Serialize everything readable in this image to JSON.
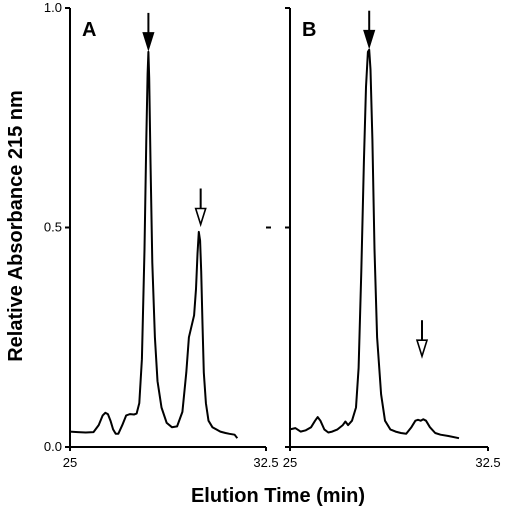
{
  "chart_data": [
    {
      "type": "line",
      "panel_label": "A",
      "x": [
        25.0,
        25.3,
        25.6,
        25.9,
        26.1,
        26.25,
        26.35,
        26.45,
        26.55,
        26.65,
        26.75,
        26.85,
        27.0,
        27.15,
        27.3,
        27.45,
        27.55,
        27.65,
        27.75,
        27.85,
        27.92,
        27.97,
        28.0,
        28.03,
        28.08,
        28.15,
        28.25,
        28.35,
        28.5,
        28.7,
        28.9,
        29.1,
        29.3,
        29.45,
        29.55,
        29.65,
        29.75,
        29.82,
        29.88,
        29.93,
        29.98,
        30.02,
        30.07,
        30.12,
        30.2,
        30.3,
        30.45,
        30.6,
        30.75,
        30.95,
        31.1,
        31.3,
        31.4
      ],
      "y": [
        0.035,
        0.034,
        0.033,
        0.034,
        0.05,
        0.072,
        0.078,
        0.075,
        0.06,
        0.04,
        0.03,
        0.03,
        0.05,
        0.072,
        0.075,
        0.074,
        0.076,
        0.1,
        0.2,
        0.45,
        0.7,
        0.85,
        0.9,
        0.84,
        0.65,
        0.42,
        0.25,
        0.15,
        0.09,
        0.055,
        0.045,
        0.047,
        0.08,
        0.17,
        0.25,
        0.275,
        0.3,
        0.36,
        0.44,
        0.49,
        0.47,
        0.4,
        0.28,
        0.17,
        0.1,
        0.06,
        0.045,
        0.04,
        0.035,
        0.032,
        0.03,
        0.028,
        0.02
      ],
      "xlim": [
        25,
        32.5
      ],
      "ylim": [
        0,
        1.0
      ],
      "xticks": [
        "25",
        "32.5"
      ],
      "yticks": [
        "0.0",
        "0.5",
        "1.0"
      ],
      "annotations": [
        {
          "type": "filled-arrow",
          "x": 28.0,
          "y": 0.9
        },
        {
          "type": "open-arrow",
          "x": 30.0,
          "y": 0.5
        }
      ]
    },
    {
      "type": "line",
      "panel_label": "B",
      "x": [
        25.0,
        25.2,
        25.4,
        25.6,
        25.8,
        25.95,
        26.05,
        26.15,
        26.3,
        26.45,
        26.6,
        26.8,
        27.0,
        27.1,
        27.2,
        27.35,
        27.5,
        27.6,
        27.7,
        27.8,
        27.88,
        27.95,
        28.0,
        28.05,
        28.12,
        28.2,
        28.3,
        28.45,
        28.6,
        28.8,
        29.0,
        29.2,
        29.4,
        29.6,
        29.75,
        29.85,
        29.95,
        30.05,
        30.15,
        30.3,
        30.5,
        30.7,
        31.0,
        31.4
      ],
      "y": [
        0.04,
        0.043,
        0.035,
        0.038,
        0.045,
        0.06,
        0.068,
        0.06,
        0.04,
        0.033,
        0.035,
        0.04,
        0.05,
        0.058,
        0.05,
        0.06,
        0.09,
        0.18,
        0.4,
        0.65,
        0.82,
        0.9,
        0.905,
        0.86,
        0.7,
        0.45,
        0.25,
        0.12,
        0.06,
        0.04,
        0.035,
        0.032,
        0.03,
        0.045,
        0.06,
        0.062,
        0.06,
        0.063,
        0.06,
        0.045,
        0.032,
        0.028,
        0.025,
        0.02
      ],
      "xlim": [
        25,
        32.5
      ],
      "ylim": [
        0,
        1.0
      ],
      "xticks": [
        "25",
        "32.5"
      ],
      "yticks": [],
      "annotations": [
        {
          "type": "filled-arrow",
          "x": 28.0,
          "y": 0.905
        },
        {
          "type": "open-arrow",
          "x": 30.0,
          "y": 0.2
        }
      ]
    }
  ],
  "axes": {
    "xlabel": "Elution Time (min)",
    "ylabel": "Relative Absorbance 215 nm"
  }
}
